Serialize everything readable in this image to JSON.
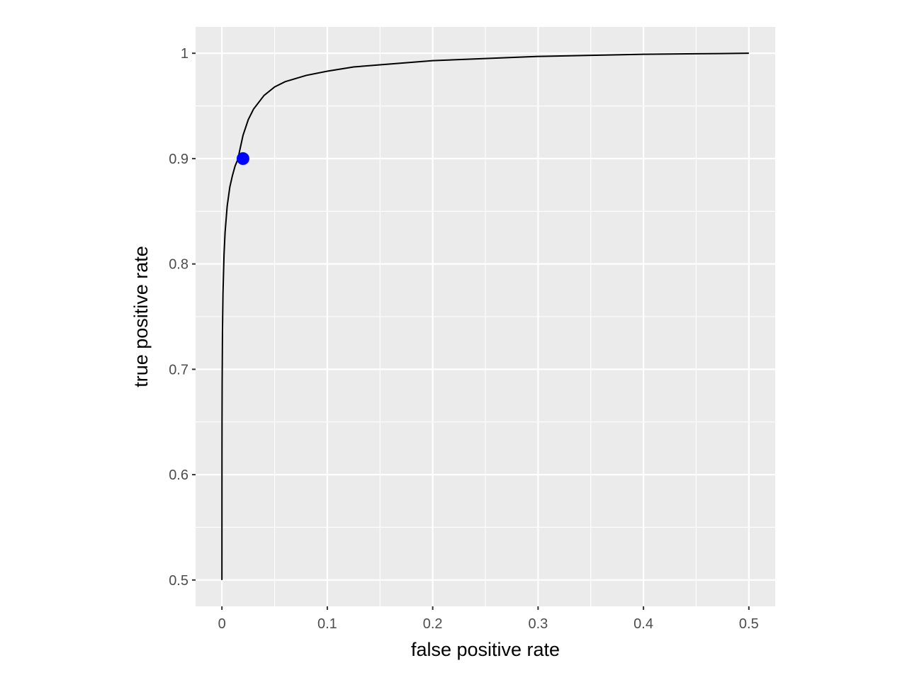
{
  "chart_data": {
    "type": "line",
    "title": "",
    "xlabel": "false positive rate",
    "ylabel": "true positive rate",
    "xlim": [
      -0.025,
      0.525
    ],
    "ylim": [
      0.475,
      1.025
    ],
    "x_ticks": [
      0,
      0.1,
      0.2,
      0.3,
      0.4,
      0.5
    ],
    "x_tick_labels": [
      "0",
      "0.1",
      "0.2",
      "0.3",
      "0.4",
      "0.5"
    ],
    "y_ticks": [
      0.5,
      0.6,
      0.7,
      0.8,
      0.9,
      1
    ],
    "y_tick_labels": [
      "0.5",
      "0.6",
      "0.7",
      "0.8",
      "0.9",
      "1"
    ],
    "grid": true,
    "background": "#ebebeb",
    "line_color": "#000000",
    "point_color": "#0000ff",
    "series": [
      {
        "type": "line",
        "x": [
          0,
          5e-05,
          0.0001,
          0.0002,
          0.0005,
          0.001,
          0.002,
          0.003,
          0.005,
          0.0075,
          0.01,
          0.0125,
          0.015,
          0.02,
          0.025,
          0.03,
          0.04,
          0.05,
          0.06,
          0.08,
          0.1,
          0.125,
          0.15,
          0.2,
          0.25,
          0.3,
          0.35,
          0.4,
          0.45,
          0.5
        ],
        "y": [
          0.5,
          0.62,
          0.651,
          0.686,
          0.735,
          0.772,
          0.809,
          0.83,
          0.855,
          0.873,
          0.884,
          0.893,
          0.899,
          0.922,
          0.937,
          0.947,
          0.96,
          0.968,
          0.973,
          0.979,
          0.983,
          0.987,
          0.989,
          0.993,
          0.995,
          0.997,
          0.998,
          0.999,
          0.9995,
          1.0
        ]
      },
      {
        "type": "point",
        "x": [
          0.02
        ],
        "y": [
          0.9
        ]
      }
    ]
  }
}
